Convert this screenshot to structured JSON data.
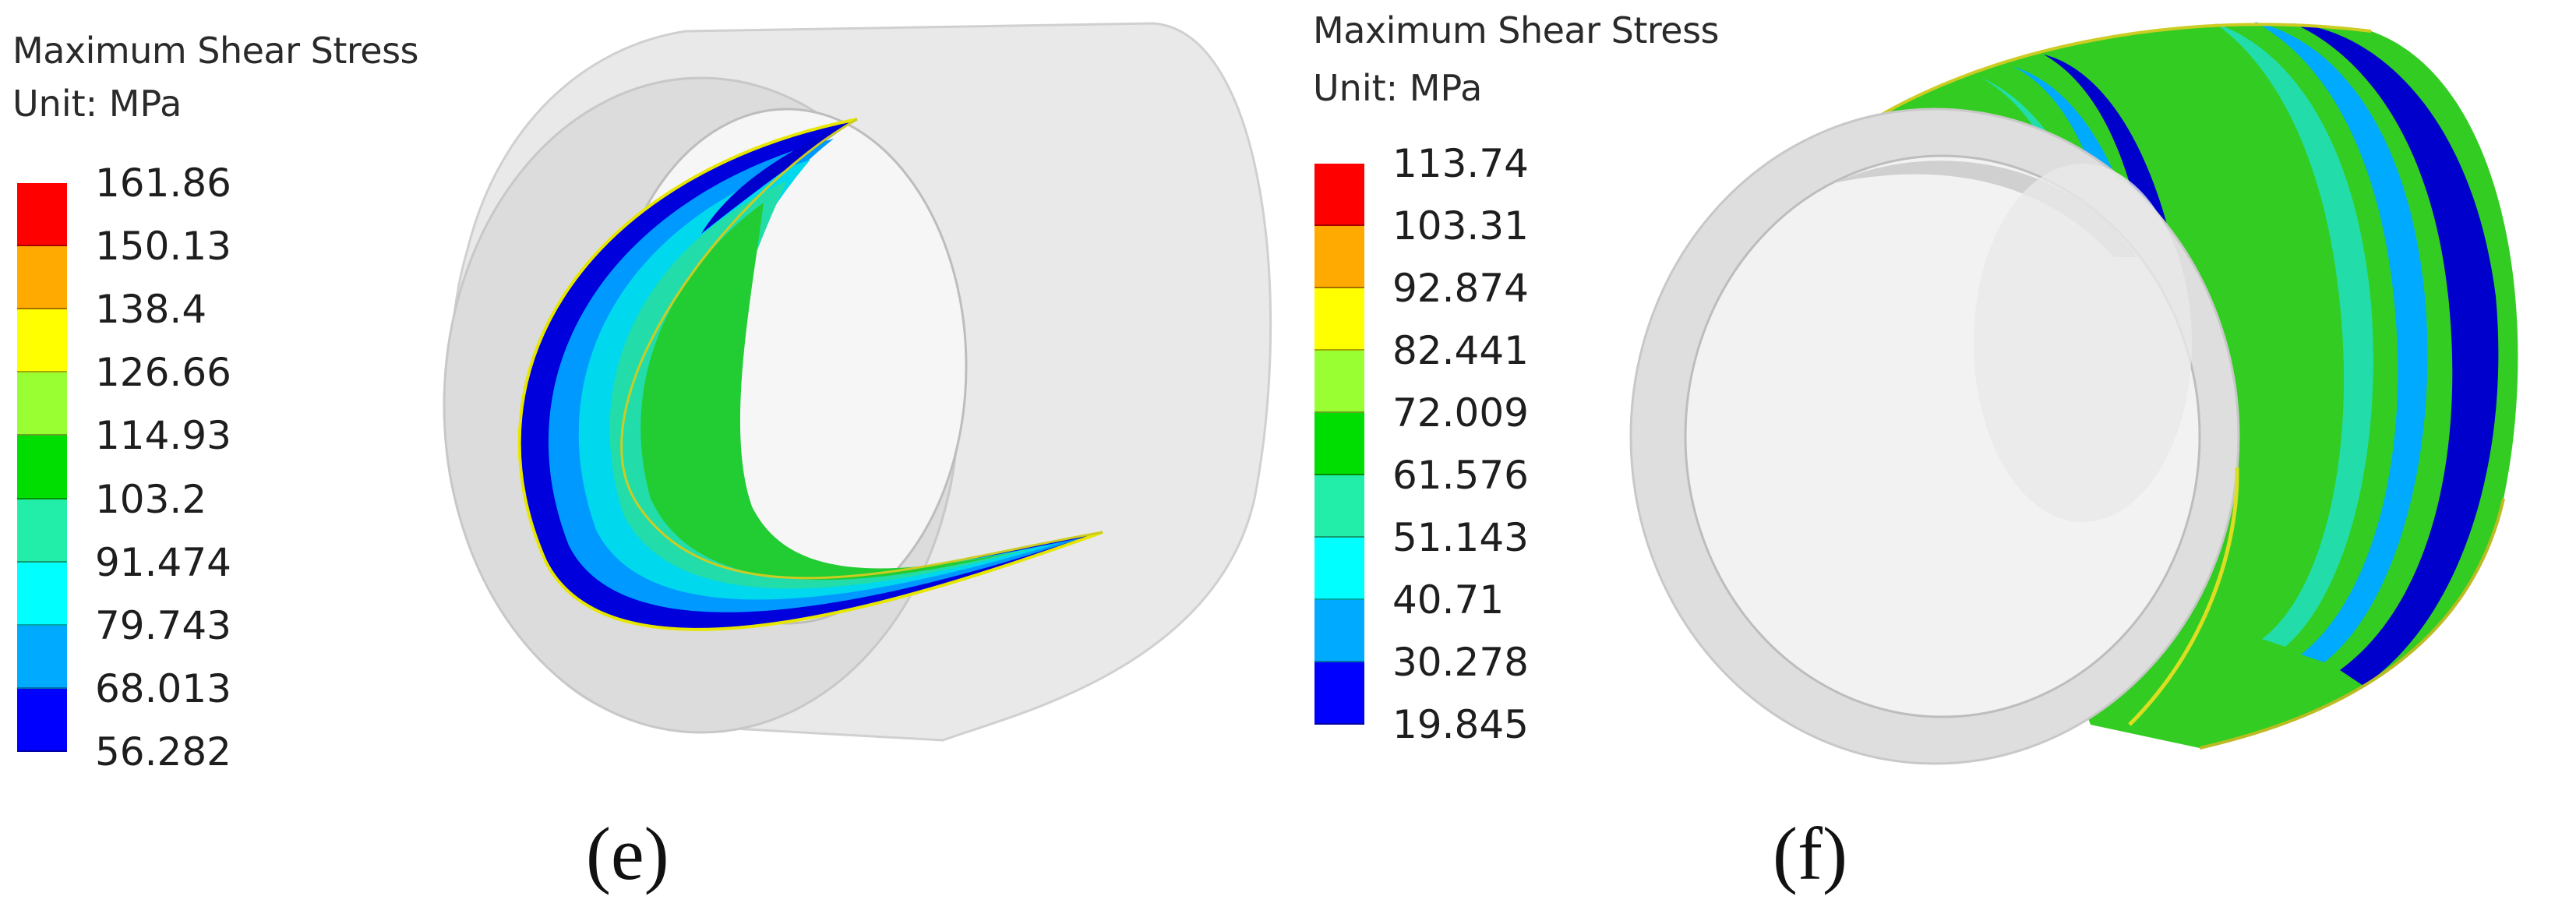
{
  "panels": [
    {
      "label": "(e)",
      "legend": {
        "title": "Maximum Shear Stress",
        "unit": "Unit: MPa",
        "levels": [
          "161.86",
          "150.13",
          "138.4",
          "126.66",
          "114.93",
          "103.2",
          "91.474",
          "79.743",
          "68.013",
          "56.282"
        ],
        "colors": [
          "#ff0000",
          "#ffaa00",
          "#ffff00",
          "#99ff33",
          "#00dd00",
          "#22eeaa",
          "#00ffff",
          "#00aaff",
          "#0000ff"
        ]
      }
    },
    {
      "label": "(f)",
      "legend": {
        "title": "Maximum Shear Stress",
        "unit": "Unit: MPa",
        "levels": [
          "113.74",
          "103.31",
          "92.874",
          "82.441",
          "72.009",
          "61.576",
          "51.143",
          "40.71",
          "30.278",
          "19.845"
        ],
        "colors": [
          "#ff0000",
          "#ffaa00",
          "#ffff00",
          "#99ff33",
          "#00dd00",
          "#22eeaa",
          "#00ffff",
          "#00aaff",
          "#0000ff"
        ]
      }
    }
  ]
}
